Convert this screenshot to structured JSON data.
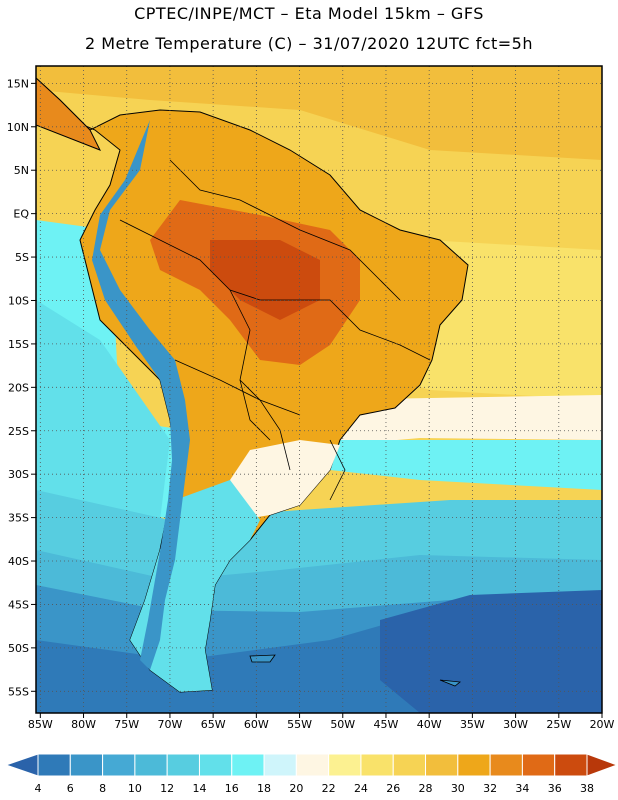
{
  "header": {
    "line1": "CPTEC/INPE/MCT –  Eta Model 15km – GFS",
    "line2": "2 Metre Temperature (C) – 31/07/2020 12UTC fct=5h"
  },
  "axes": {
    "lat_labels": [
      "15N",
      "10N",
      "5N",
      "EQ",
      "5S",
      "10S",
      "15S",
      "20S",
      "25S",
      "30S",
      "35S",
      "40S",
      "45S",
      "50S",
      "55S"
    ],
    "lat_values": [
      15,
      10,
      5,
      0,
      -5,
      -10,
      -15,
      -20,
      -25,
      -30,
      -35,
      -40,
      -45,
      -50,
      -55
    ],
    "lon_labels": [
      "85W",
      "80W",
      "75W",
      "70W",
      "65W",
      "60W",
      "55W",
      "50W",
      "45W",
      "40W",
      "35W",
      "30W",
      "25W",
      "20W"
    ],
    "lon_values": [
      -85,
      -80,
      -75,
      -70,
      -65,
      -60,
      -55,
      -50,
      -45,
      -40,
      -35,
      -30,
      -25,
      -20
    ],
    "lon_range": [
      -85.5,
      -20
    ],
    "lat_range": [
      -57.5,
      17
    ]
  },
  "colorbar": {
    "labels": [
      "4",
      "6",
      "8",
      "10",
      "12",
      "14",
      "16",
      "18",
      "20",
      "22",
      "24",
      "26",
      "28",
      "30",
      "32",
      "34",
      "36",
      "38"
    ],
    "colors": [
      "#2a63aa",
      "#2f7ab8",
      "#3a95c8",
      "#45a9d4",
      "#4cbad8",
      "#57cde0",
      "#62e0ea",
      "#6ef2f4",
      "#cff5fb",
      "#fef6e3",
      "#fcf191",
      "#f9e26a",
      "#f6d354",
      "#f2be3c",
      "#eea71a",
      "#e88a1c",
      "#e06a16",
      "#cc4b0e",
      "#b8380a"
    ]
  }
}
